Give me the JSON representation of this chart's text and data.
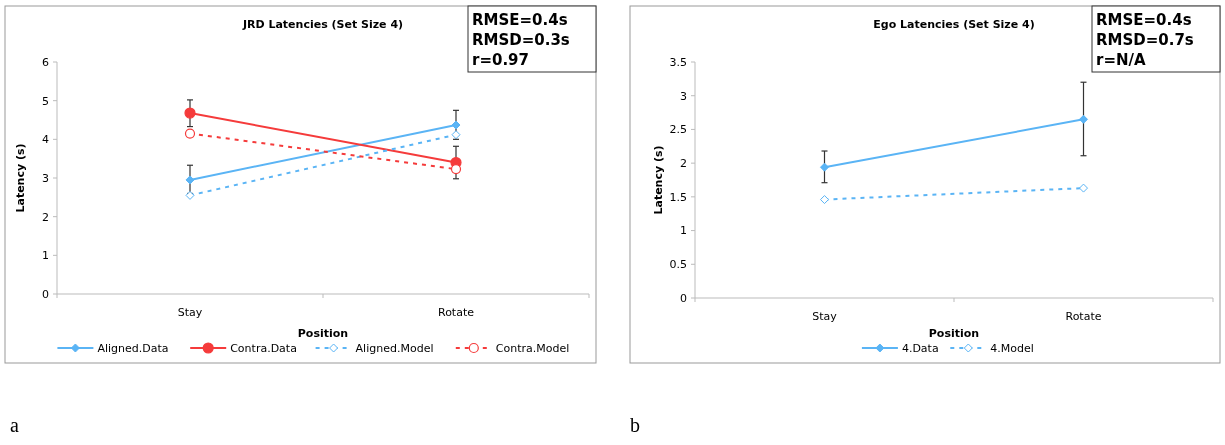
{
  "chart_data": [
    {
      "type": "line",
      "title": "JRD Latencies (Set Size 4)",
      "xlabel": "Position",
      "ylabel": "Latency (s)",
      "categories": [
        "Stay",
        "Rotate"
      ],
      "ylim": [
        0,
        6
      ],
      "yticks": [
        0,
        1,
        2,
        3,
        4,
        5,
        6
      ],
      "grid": false,
      "legend": "bottom",
      "annotations": [
        "RMSE=0.4s",
        "RMSD=0.3s",
        "r=0.97",
        "a"
      ],
      "series": [
        {
          "name": "Aligned.Data",
          "color": "#5ab4f5",
          "values": [
            2.95,
            4.37
          ],
          "errors": [
            [
              2.6,
              3.33
            ],
            [
              4.0,
              4.75
            ]
          ],
          "marker": "diamond",
          "line_style": "solid"
        },
        {
          "name": "Contra.Data",
          "color": "#f53b3b",
          "values": [
            4.68,
            3.4
          ],
          "errors": [
            [
              4.33,
              5.02
            ],
            [
              2.98,
              3.82
            ]
          ],
          "marker": "circle",
          "line_style": "solid"
        },
        {
          "name": "Aligned.Model",
          "color": "#5ab4f5",
          "values": [
            2.55,
            4.12
          ],
          "marker": "diamond",
          "line_style": "dashed"
        },
        {
          "name": "Contra.Model",
          "color": "#f53b3b",
          "values": [
            4.15,
            3.23
          ],
          "marker": "circle",
          "line_style": "dashed"
        }
      ]
    },
    {
      "type": "line",
      "title": "Ego Latencies (Set Size 4)",
      "xlabel": "Position",
      "ylabel": "Latency (s)",
      "categories": [
        "Stay",
        "Rotate"
      ],
      "ylim": [
        0,
        3.5
      ],
      "yticks": [
        0,
        0.5,
        1,
        1.5,
        2,
        2.5,
        3,
        3.5
      ],
      "grid": false,
      "legend": "bottom",
      "annotations": [
        "RMSE=0.4s",
        "RMSD=0.7s",
        "r=N/A",
        "b"
      ],
      "series": [
        {
          "name": "4.Data",
          "color": "#5ab4f5",
          "values": [
            1.94,
            2.65
          ],
          "errors": [
            [
              1.71,
              2.18
            ],
            [
              2.11,
              3.2
            ]
          ],
          "marker": "diamond",
          "line_style": "solid"
        },
        {
          "name": "4.Model",
          "color": "#5ab4f5",
          "values": [
            1.46,
            1.63
          ],
          "marker": "diamond",
          "line_style": "dashed"
        }
      ]
    }
  ]
}
